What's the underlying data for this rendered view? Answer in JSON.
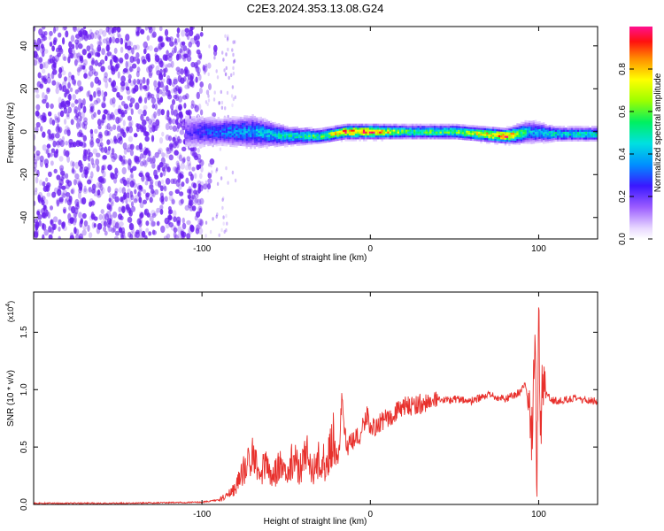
{
  "title": "C2E3.2024.353.13.08.G24",
  "colors": {
    "signal": "#e8302c",
    "spectrogram_dots": "#6a1ef0",
    "axis": "#000000"
  },
  "chart_data": [
    {
      "type": "heatmap",
      "xlabel": "Height of straight line (km)",
      "ylabel": "Frequency (Hz)",
      "xlim": [
        -200,
        135
      ],
      "ylim": [
        -50,
        49
      ],
      "xticks": [
        -100,
        0,
        100
      ],
      "xtick_labels": [
        "-100",
        "0",
        "100"
      ],
      "yticks": [
        -40,
        -20,
        0,
        20,
        40
      ],
      "ytick_labels": [
        "-40",
        "-20",
        "0",
        "20",
        "40"
      ],
      "colorbar": {
        "label": "Normalized spectral amplitude",
        "range": [
          0.0,
          1.0
        ],
        "ticks": [
          0.0,
          0.2,
          0.4,
          0.6,
          0.8
        ],
        "tick_labels": [
          "0.0",
          "0.2",
          "0.4",
          "0.6",
          "0.8"
        ],
        "colormap": "rainbow"
      },
      "noise_region_x": [
        -200,
        -100
      ],
      "band": {
        "x": [
          -110,
          -90,
          -70,
          -50,
          -30,
          -15,
          0,
          20,
          50,
          80,
          95,
          110,
          135
        ],
        "center_freq": [
          0,
          0,
          0,
          -2,
          -2,
          0,
          0,
          0,
          0,
          -2,
          0,
          -1,
          -1
        ],
        "half_width": [
          8,
          6,
          7,
          4,
          3,
          3,
          3,
          3,
          3,
          3,
          5,
          3,
          3
        ],
        "peak_amplitude": [
          0.2,
          0.35,
          0.4,
          0.5,
          0.6,
          0.9,
          0.95,
          0.6,
          0.6,
          0.95,
          0.4,
          0.5,
          0.5
        ]
      }
    },
    {
      "type": "line",
      "xlabel": "Height of straight line (km)",
      "ylabel": "SNR (10 * v/v)",
      "y_multiplier": "(x10",
      "y_multiplier_exp": "4",
      "xlim": [
        -200,
        135
      ],
      "ylim": [
        0,
        1.85
      ],
      "xticks": [
        -100,
        0,
        100
      ],
      "xtick_labels": [
        "-100",
        "0",
        "100"
      ],
      "yticks": [
        0.0,
        0.5,
        1.0,
        1.5
      ],
      "ytick_labels": [
        "0.0",
        "0.5",
        "1.0",
        "1.5"
      ],
      "series": [
        {
          "x": [
            -200,
            -150,
            -100,
            -90,
            -85,
            -80,
            -75,
            -70,
            -66,
            -62,
            -58,
            -54,
            -50,
            -46,
            -42,
            -38,
            -34,
            -30,
            -26,
            -22,
            -19,
            -17,
            -14,
            -10,
            -6,
            -2,
            0,
            5,
            10,
            20,
            30,
            40,
            50,
            60,
            70,
            80,
            88,
            92,
            96,
            98,
            99,
            100,
            101,
            102,
            104,
            110,
            120,
            135
          ],
          "y": [
            0.01,
            0.01,
            0.02,
            0.04,
            0.08,
            0.15,
            0.3,
            0.45,
            0.25,
            0.38,
            0.22,
            0.35,
            0.25,
            0.4,
            0.3,
            0.45,
            0.3,
            0.4,
            0.35,
            0.6,
            0.35,
            0.9,
            0.5,
            0.55,
            0.6,
            0.8,
            0.65,
            0.7,
            0.75,
            0.85,
            0.88,
            0.9,
            0.92,
            0.9,
            0.95,
            0.92,
            0.97,
            1.05,
            0.6,
            1.45,
            0.02,
            1.8,
            0.5,
            1.0,
            0.95,
            0.9,
            0.92,
            0.9
          ]
        }
      ]
    }
  ]
}
